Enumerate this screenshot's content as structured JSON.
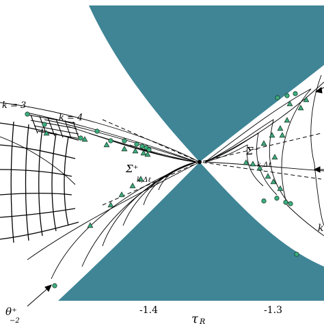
{
  "colors": {
    "forbidden_region": "#3f8596",
    "marker_fill": "#3cae7e",
    "marker_stroke": "#1f3a2c",
    "curve": "#000000"
  },
  "labels": {
    "k3": "k = 3",
    "k4": "k = 4",
    "sigma_plus": "Σ⁺",
    "sigma_plus_sub": "k,Δℓ",
    "sigma_minus": "Σ⁻",
    "sigma_minus_sub": "k,Δℓ",
    "theta": "θ⁺",
    "theta_sub": "−2",
    "k_right": "k"
  },
  "axis": {
    "x_label": "τ",
    "x_label_sub": "R",
    "x_ticks": [
      "-1.4",
      "-1.3"
    ]
  }
}
